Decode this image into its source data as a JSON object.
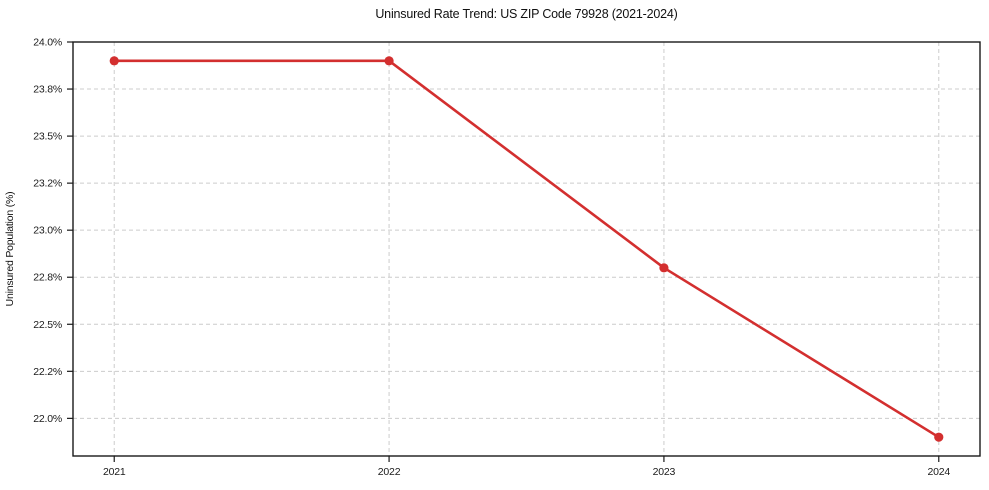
{
  "chart_data": {
    "type": "line",
    "title": "Uninsured Rate Trend: US ZIP Code 79928 (2021-2024)",
    "xlabel": "",
    "ylabel": "Uninsured Population (%)",
    "x": [
      2021,
      2022,
      2023,
      2024
    ],
    "values": [
      23.9,
      23.9,
      22.8,
      21.9
    ],
    "xlim": [
      2020.85,
      2024.15
    ],
    "ylim": [
      21.8,
      24.0
    ],
    "grid": true,
    "grid_style": "dashed",
    "legend": "none",
    "xticks": [
      {
        "value": 2021,
        "label": "2021"
      },
      {
        "value": 2022,
        "label": "2022"
      },
      {
        "value": 2023,
        "label": "2023"
      },
      {
        "value": 2024,
        "label": "2024"
      }
    ],
    "yticks": [
      {
        "value": 22.0,
        "label": "22.0%"
      },
      {
        "value": 22.25,
        "label": "22.2%"
      },
      {
        "value": 22.5,
        "label": "22.5%"
      },
      {
        "value": 22.75,
        "label": "22.8%"
      },
      {
        "value": 23.0,
        "label": "23.0%"
      },
      {
        "value": 23.25,
        "label": "23.2%"
      },
      {
        "value": 23.5,
        "label": "23.5%"
      },
      {
        "value": 23.75,
        "label": "23.8%"
      },
      {
        "value": 24.0,
        "label": "24.0%"
      }
    ]
  },
  "colors": {
    "line": "#d32f2f",
    "marker": "#d32f2f",
    "grid": "#cccccc",
    "spine": "#1a1a1a",
    "tick": "#1a1a1a",
    "background": "#ffffff"
  }
}
